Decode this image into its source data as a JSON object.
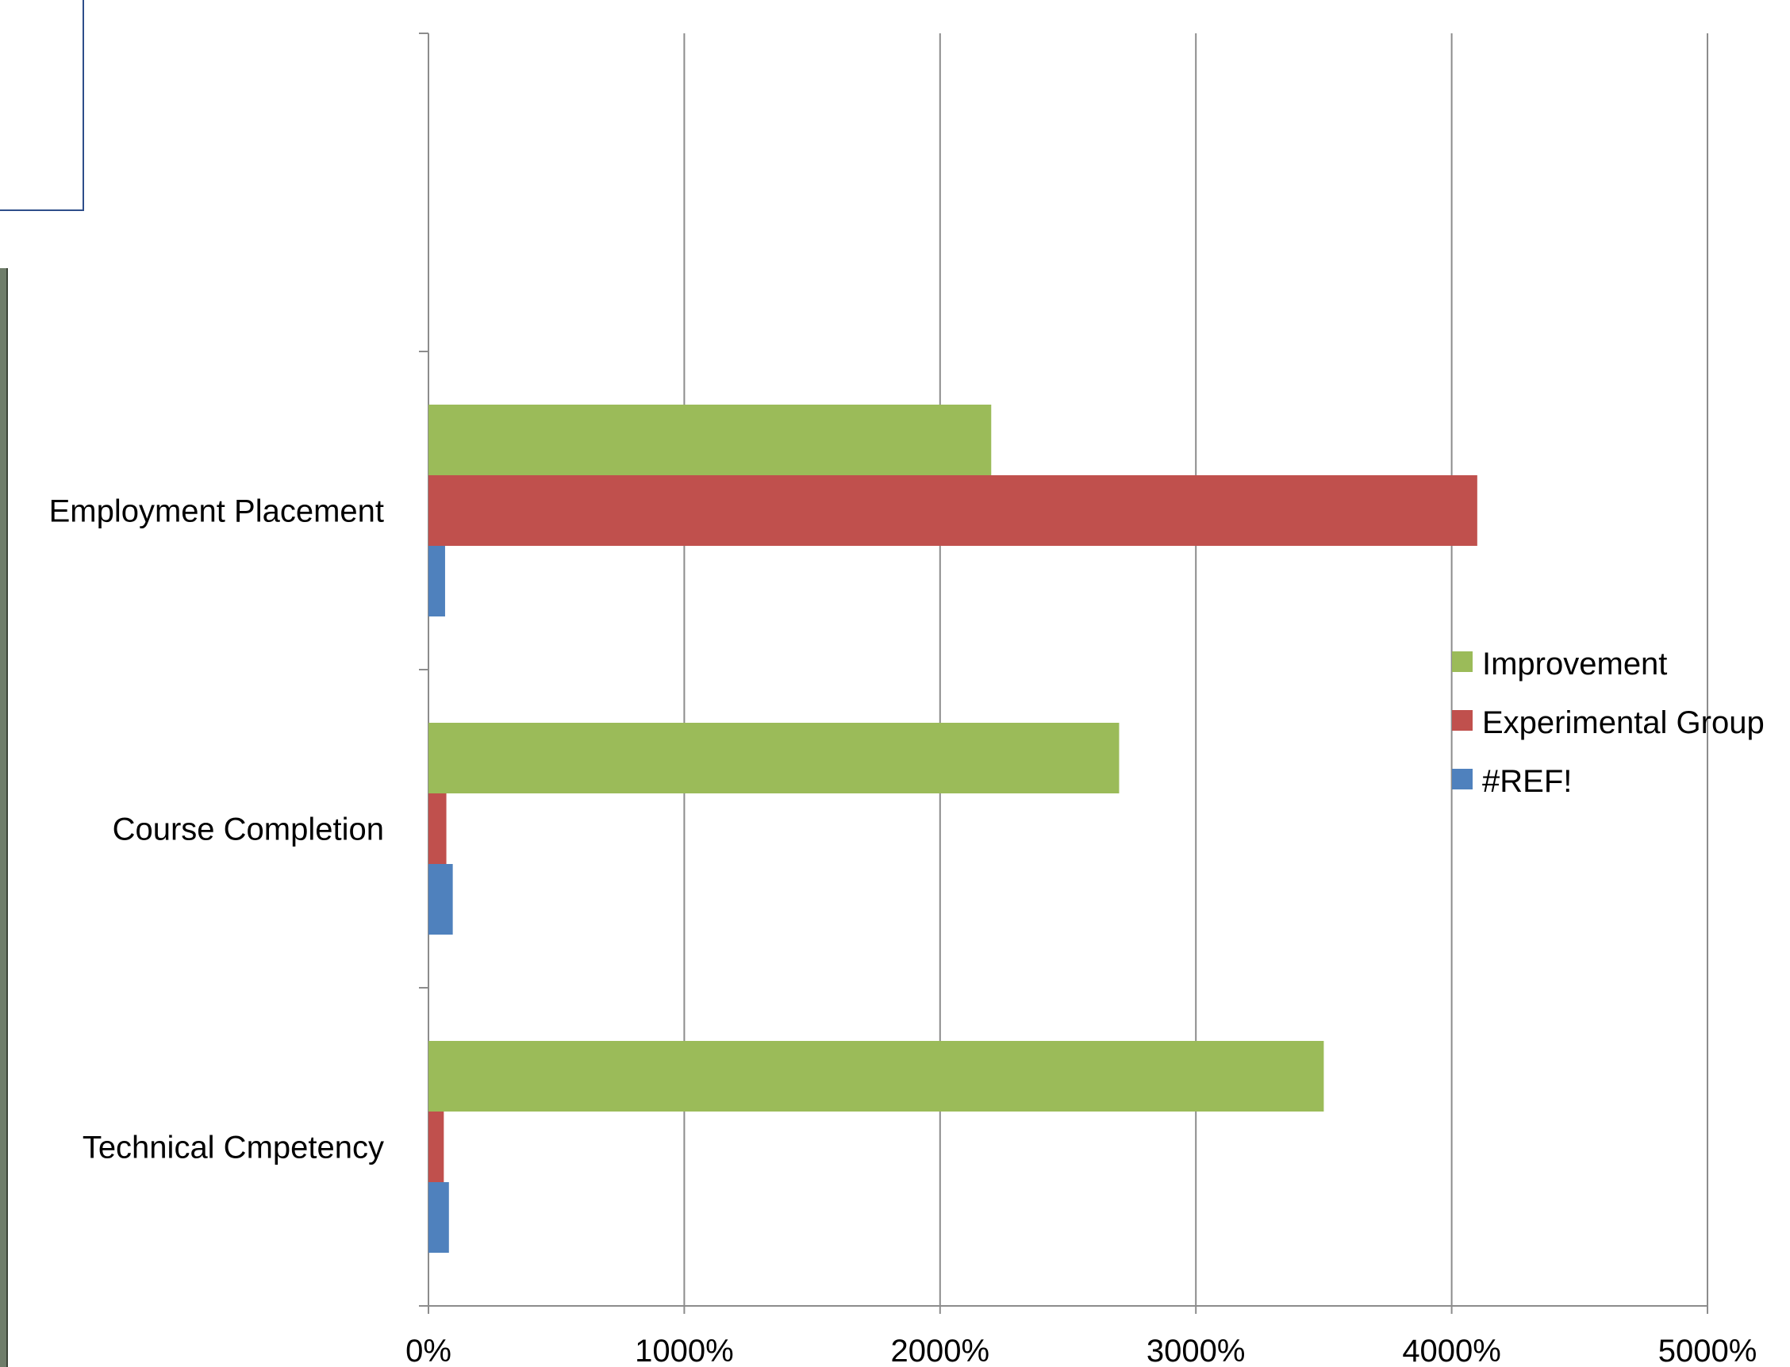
{
  "chart_data": {
    "type": "bar",
    "orientation": "horizontal",
    "title": "",
    "xlabel": "",
    "ylabel": "",
    "categories": [
      "Technical Cmpetency",
      "Course Completion",
      "Employment Placement"
    ],
    "series": [
      {
        "name": "#REF!",
        "color": "#4f81bd",
        "values": [
          80,
          95,
          65
        ]
      },
      {
        "name": "Experimental Group",
        "color": "#c0504d",
        "values": [
          60,
          70,
          4100
        ]
      },
      {
        "name": "Improvement",
        "color": "#9bbb59",
        "values": [
          3500,
          2700,
          2200
        ]
      }
    ],
    "xlim": [
      0,
      5000
    ],
    "x_ticks": [
      0,
      1000,
      2000,
      3000,
      4000,
      5000
    ],
    "tick_labels": [
      "0%",
      "1000%",
      "2000%",
      "3000%",
      "4000%",
      "5000%"
    ],
    "grid": "vertical",
    "legend_position": "right",
    "legend_order": [
      "Improvement",
      "Experimental Group",
      "#REF!"
    ],
    "category_slots": 4,
    "empty_top_slot": true
  }
}
